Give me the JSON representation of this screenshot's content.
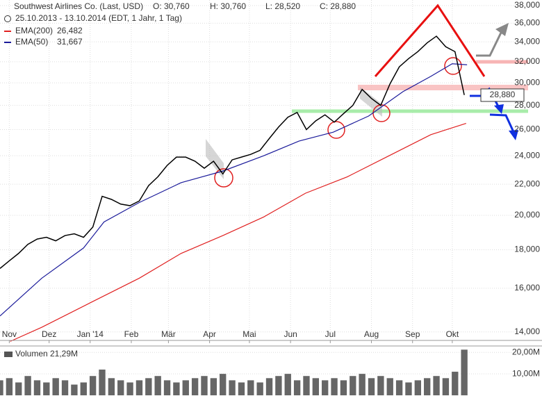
{
  "chart_data": {
    "type": "line",
    "header": {
      "title": "Southwest Airlines Co. (Last, USD)",
      "open": "O: 30,760",
      "high": "H: 30,760",
      "low": "L: 28,520",
      "close": "C: 28,880",
      "range": "25.10.2013 - 13.10.2014 (EDT, 1 Jahr, 1 Tag)"
    },
    "price_tag": "28,880",
    "log_scale": true,
    "grid": true,
    "xlim": [
      0,
      56.5
    ],
    "ylim": [
      13640,
      38650
    ],
    "xticks": [
      {
        "value": 1,
        "label": "Nov"
      },
      {
        "value": 5.29,
        "label": "Dez"
      },
      {
        "value": 9.71,
        "label": "Jan '14"
      },
      {
        "value": 14.14,
        "label": "Feb"
      },
      {
        "value": 18.14,
        "label": "Mär"
      },
      {
        "value": 22.57,
        "label": "Apr"
      },
      {
        "value": 26.86,
        "label": "Mai"
      },
      {
        "value": 31.29,
        "label": "Jun"
      },
      {
        "value": 35.57,
        "label": "Jul"
      },
      {
        "value": 40,
        "label": "Aug"
      },
      {
        "value": 44.43,
        "label": "Sep"
      },
      {
        "value": 48.71,
        "label": "Okt"
      }
    ],
    "yticks": [
      {
        "value": 14000,
        "label": "14,000"
      },
      {
        "value": 16000,
        "label": "16,000"
      },
      {
        "value": 18000,
        "label": "18,000"
      },
      {
        "value": 20000,
        "label": "20,000"
      },
      {
        "value": 22000,
        "label": "22,000"
      },
      {
        "value": 24000,
        "label": "24,000"
      },
      {
        "value": 26000,
        "label": "26,000"
      },
      {
        "value": 28000,
        "label": "28,000"
      },
      {
        "value": 30000,
        "label": "30,000"
      },
      {
        "value": 32000,
        "label": "32,000"
      },
      {
        "value": 34000,
        "label": "34,000"
      },
      {
        "value": 36000,
        "label": "36,000"
      },
      {
        "value": 38000,
        "label": "38,000"
      }
    ],
    "price": {
      "color": "#000000",
      "x": [
        0,
        1,
        2,
        3,
        4,
        5,
        6,
        7,
        8,
        9,
        10,
        11,
        12,
        13,
        14,
        15,
        16,
        17,
        18,
        19,
        20,
        21,
        22,
        23,
        24,
        25,
        26,
        27,
        28,
        29,
        30,
        31,
        32,
        33,
        34,
        35,
        36,
        37,
        38,
        39,
        40,
        41,
        42,
        43,
        44,
        45,
        46,
        47,
        48,
        49,
        50
      ],
      "values": [
        17000,
        17400,
        17800,
        18300,
        18600,
        18700,
        18500,
        18800,
        18900,
        18700,
        19300,
        21200,
        21000,
        20700,
        20600,
        20900,
        21900,
        22500,
        23300,
        23900,
        23900,
        23600,
        23100,
        23600,
        22700,
        23700,
        23900,
        24100,
        24400,
        25300,
        26200,
        27000,
        27400,
        26000,
        26700,
        27200,
        26600,
        27300,
        28000,
        29400,
        28600,
        28000,
        29900,
        31500,
        32300,
        33000,
        33900,
        34600,
        33500,
        33000,
        28900
      ]
    },
    "series": [
      {
        "name": "EMA(200)",
        "legend_value": "26,482",
        "color": "#e02020",
        "x": [
          1.1,
          4.5,
          9.7,
          15,
          19.5,
          24,
          28.4,
          32.9,
          37.4,
          41.9,
          46.4,
          50.2
        ],
        "values": [
          13600,
          14200,
          15300,
          16500,
          17800,
          18800,
          19900,
          21400,
          22500,
          24000,
          25600,
          26500
        ]
      },
      {
        "name": "EMA(50)",
        "legend_value": "31,667",
        "color": "#1a1a9a",
        "x": [
          0,
          4.5,
          9,
          11.2,
          15,
          19.5,
          24,
          28.4,
          32.2,
          35.9,
          39.7,
          43.4,
          46.4,
          48.7,
          50.3
        ],
        "values": [
          14700,
          16500,
          18100,
          19600,
          20800,
          22100,
          22900,
          24000,
          25100,
          25800,
          27100,
          29200,
          30600,
          31800,
          31700
        ]
      }
    ],
    "volume": {
      "label": "Volumen",
      "last": "21,29M",
      "color": "#666666",
      "ylim": [
        0,
        23
      ],
      "yticks": [
        {
          "value": 10,
          "label": "10,00M"
        },
        {
          "value": 20,
          "label": "20,00M"
        }
      ],
      "values": [
        7,
        8,
        6,
        9,
        7,
        6,
        8,
        7,
        5,
        6,
        9,
        12,
        8,
        7,
        6,
        7,
        8,
        9,
        7,
        6,
        7,
        8,
        9,
        8,
        10,
        7,
        6,
        7,
        6,
        8,
        9,
        10,
        7,
        9,
        8,
        7,
        8,
        7,
        9,
        10,
        8,
        9,
        8,
        7,
        6,
        7,
        8,
        9,
        8,
        11,
        21.29
      ]
    }
  }
}
